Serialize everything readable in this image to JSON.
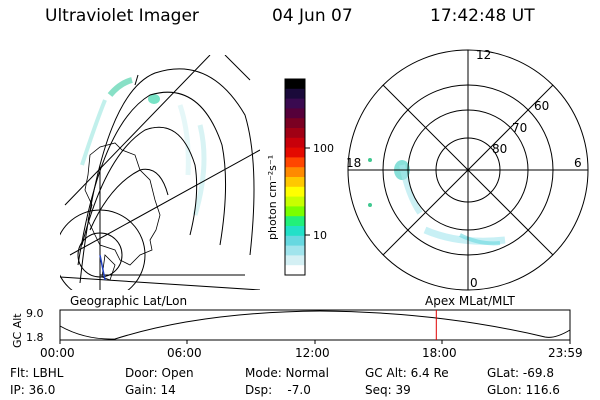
{
  "header": {
    "instrument": "Ultraviolet Imager",
    "date": "04 Jun 07",
    "time": "17:42:48 UT"
  },
  "colorbar": {
    "unit_label": "photon cm⁻²s⁻¹",
    "ticks": [
      "100",
      "10"
    ],
    "colors": [
      "#000000",
      "#1a0a3a",
      "#3a0a50",
      "#55003a",
      "#7a0022",
      "#a00014",
      "#c8000a",
      "#e40a00",
      "#ff4600",
      "#ff8a00",
      "#ffc800",
      "#ffff00",
      "#c8ff00",
      "#7aff00",
      "#22f07a",
      "#22e0c8",
      "#66d8e0",
      "#a0e4ec",
      "#d4f0f4",
      "#ffffff"
    ]
  },
  "geo_panel": {
    "label": "Geographic Lat/Lon"
  },
  "polar_panel": {
    "label": "Apex MLat/MLT",
    "mlt_labels": {
      "top": "12",
      "left": "18",
      "right": "6",
      "bottom": "0"
    },
    "lat_labels": [
      "60",
      "70",
      "80"
    ]
  },
  "altitude_plot": {
    "ylabel": "GC Alt",
    "ymax_label": "9.0",
    "ymin_label": "1.8",
    "xticks": [
      "00:00",
      "06:00",
      "12:00",
      "18:00",
      "23:59"
    ],
    "marker_color": "#e00000",
    "marker_time_hours": 17.71
  },
  "footer": {
    "filter": "Flt: LBHL",
    "door": "Door: Open",
    "mode": "Mode: Normal",
    "gc_alt": "GC Alt: 6.4 Re",
    "glat": "GLat: -69.8",
    "ip": "IP: 36.0",
    "gain": "Gain: 14",
    "dsp": "Dsp:    -7.0",
    "seq": "Seq: 39",
    "glon": "GLon: 116.6"
  }
}
